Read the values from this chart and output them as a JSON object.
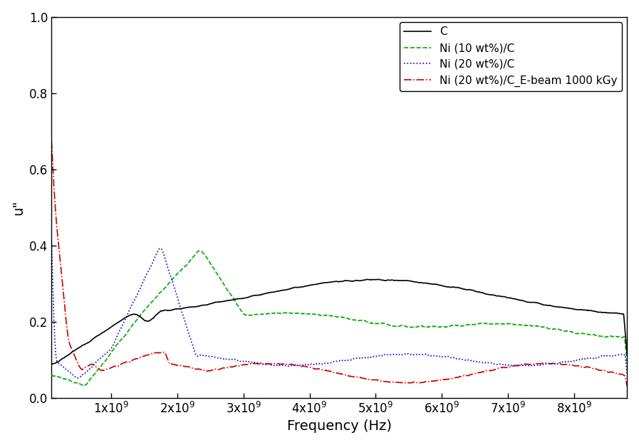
{
  "title": "",
  "xlabel": "Frequency (Hz)",
  "ylabel": "u\"",
  "xlim": [
    100000000.0,
    8800000000.0
  ],
  "ylim": [
    0.0,
    1.0
  ],
  "yticks": [
    0.0,
    0.2,
    0.4,
    0.6,
    0.8,
    1.0
  ],
  "xticks": [
    1000000000.0,
    2000000000.0,
    3000000000.0,
    4000000000.0,
    5000000000.0,
    6000000000.0,
    7000000000.0,
    8000000000.0
  ],
  "series": [
    {
      "label": "C",
      "color": "#000000",
      "linestyle": "-",
      "linewidth": 1.2,
      "zorder": 4
    },
    {
      "label": "Ni (10 wt%)/C",
      "color": "#00aa00",
      "linestyle": "--",
      "linewidth": 1.2,
      "zorder": 3
    },
    {
      "label": "Ni (20 wt%)/C",
      "color": "#0000cc",
      "linestyle": ":",
      "linewidth": 1.2,
      "zorder": 2
    },
    {
      "label": "Ni (20 wt%)/C_E-beam 1000 kGy",
      "color": "#cc0000",
      "linestyle": "-.",
      "linewidth": 1.2,
      "zorder": 1
    }
  ],
  "legend_loc": "upper right",
  "legend_fontsize": 11,
  "axis_fontsize": 14,
  "tick_fontsize": 12,
  "background_color": "#ffffff"
}
